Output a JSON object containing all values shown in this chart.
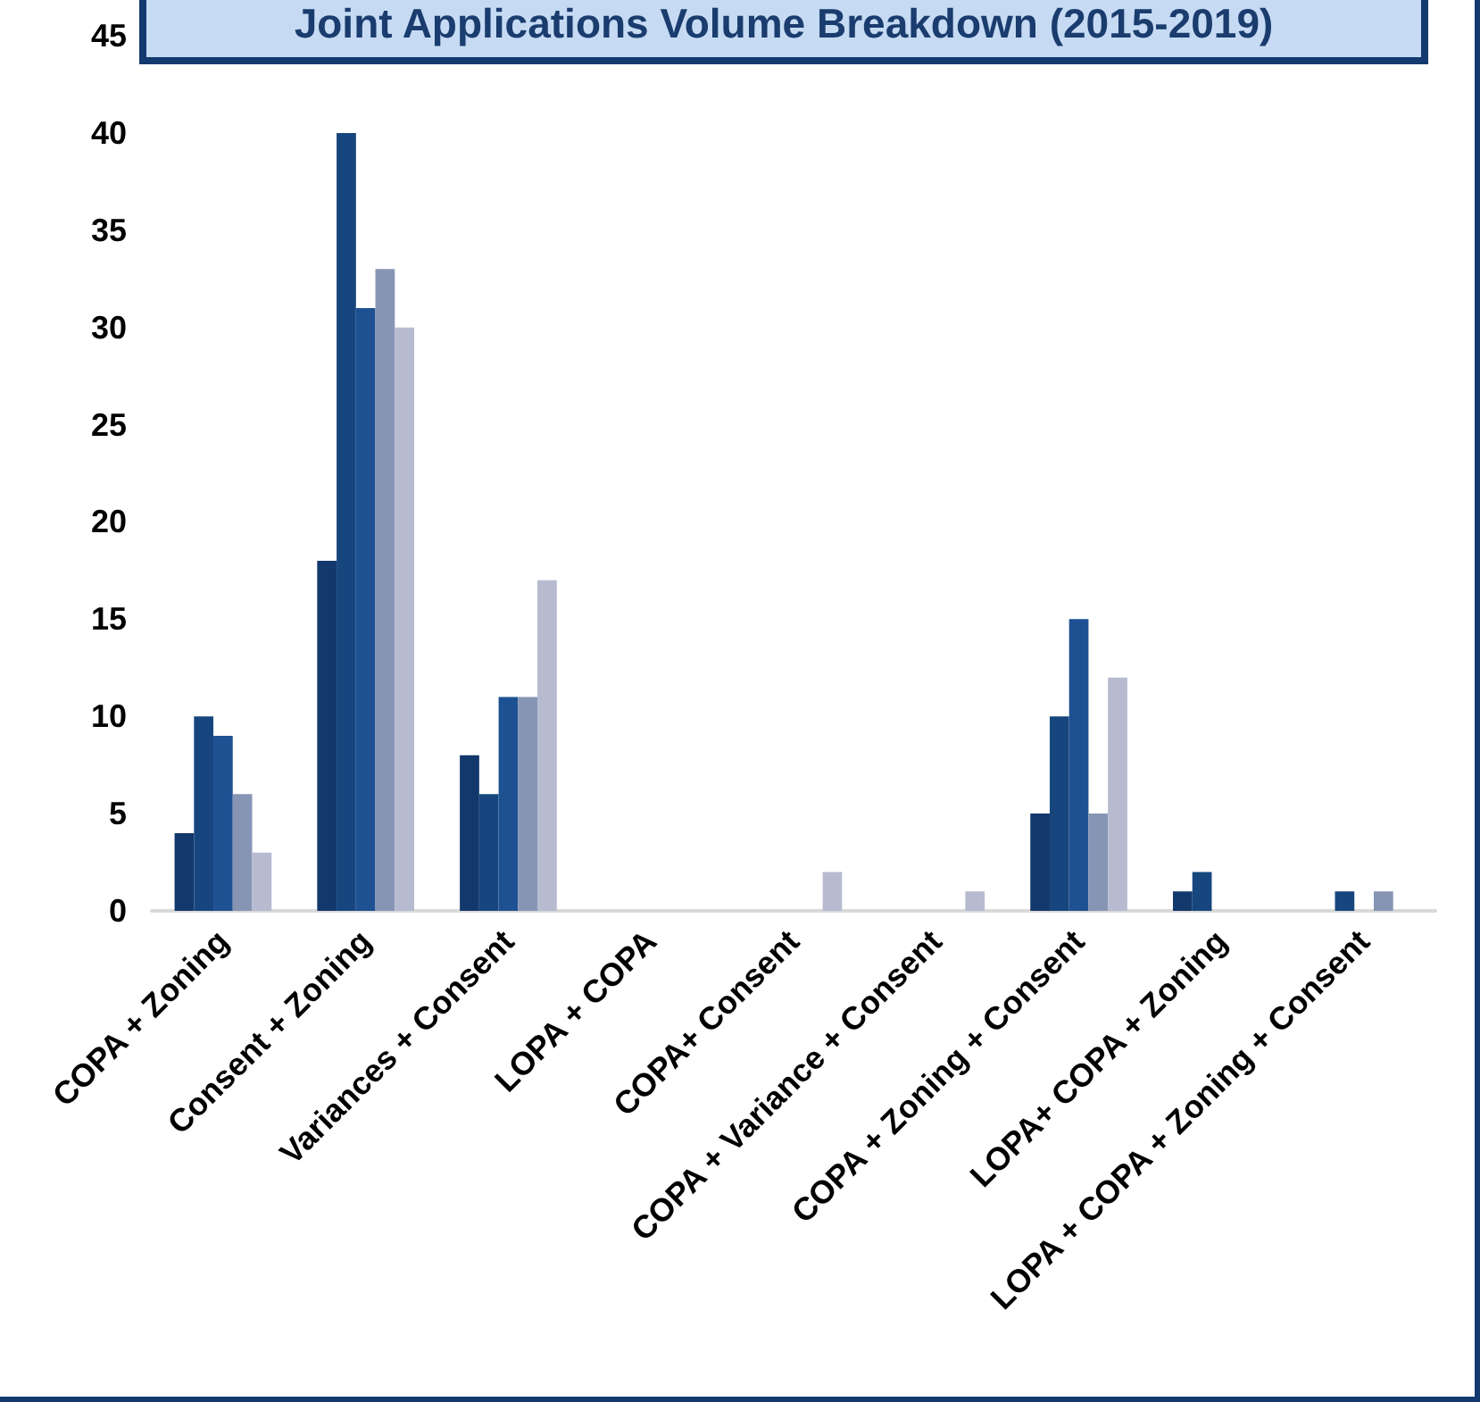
{
  "chart_data": {
    "type": "bar",
    "title": "Joint Applications Volume Breakdown (2015-2019)",
    "categories": [
      "COPA + Zoning",
      "Consent + Zoning",
      "Variances + Consent",
      "LOPA + COPA",
      "COPA+ Consent",
      "COPA + Variance + Consent",
      "COPA + Zoning + Consent",
      "LOPA+ COPA + Zoning",
      "LOPA + COPA + Zoning + Consent"
    ],
    "series": [
      {
        "color": "#13386b",
        "values": [
          4,
          18,
          8,
          0,
          0,
          0,
          5,
          1,
          0
        ]
      },
      {
        "color": "#17467f",
        "values": [
          10,
          40,
          6,
          0,
          0,
          0,
          10,
          2,
          1
        ]
      },
      {
        "color": "#1e5192",
        "values": [
          9,
          31,
          11,
          0,
          0,
          0,
          15,
          0,
          0
        ]
      },
      {
        "color": "#8795b5",
        "values": [
          6,
          33,
          11,
          0,
          0,
          0,
          5,
          0,
          1
        ]
      },
      {
        "color": "#b6bbd0",
        "values": [
          3,
          30,
          17,
          0,
          2,
          1,
          12,
          0,
          0
        ]
      }
    ],
    "ylim": [
      0,
      45
    ],
    "yticks": [
      0,
      5,
      10,
      15,
      20,
      25,
      30,
      35,
      40,
      45
    ],
    "grid": false
  }
}
